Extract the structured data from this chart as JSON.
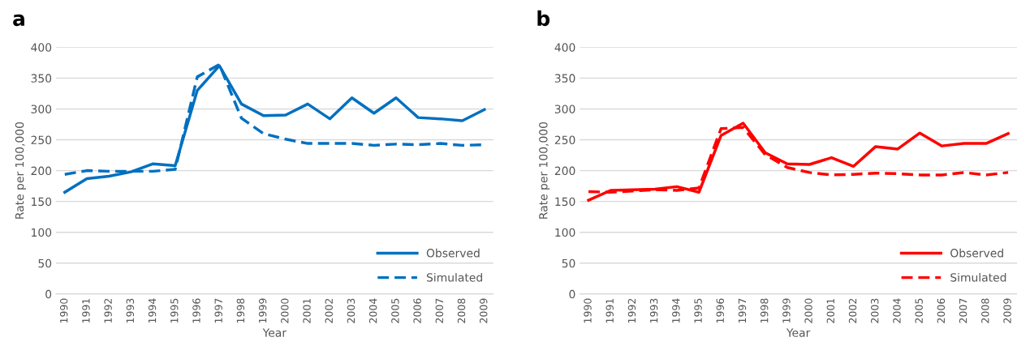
{
  "chart_data": [
    {
      "type": "line",
      "title": "a",
      "xlabel": "Year",
      "ylabel": "Rate per 100,000",
      "categories": [
        "1990",
        "1991",
        "1992",
        "1993",
        "1994",
        "1995",
        "1996",
        "1997",
        "1998",
        "1999",
        "2000",
        "2001",
        "2002",
        "2003",
        "2004",
        "2005",
        "2006",
        "2007",
        "2008",
        "2009"
      ],
      "ylim": [
        0,
        400
      ],
      "yticks": [
        0,
        50,
        100,
        150,
        200,
        250,
        300,
        350,
        400
      ],
      "grid": "y",
      "legend": "bottom right",
      "marker": "none",
      "series": [
        {
          "name": "Observed",
          "color": "#0070c0",
          "line_style": "solid",
          "values": [
            165,
            187,
            191,
            198,
            211,
            208,
            330,
            370,
            308,
            289,
            290,
            308,
            284,
            318,
            293,
            318,
            286,
            284,
            281,
            299
          ]
        },
        {
          "name": "Simulated",
          "color": "#0070c0",
          "line_style": "dashed",
          "values": [
            194,
            200,
            199,
            199,
            199,
            202,
            352,
            372,
            285,
            260,
            251,
            244,
            244,
            244,
            241,
            243,
            242,
            244,
            241,
            242
          ]
        }
      ]
    },
    {
      "type": "line",
      "title": "b",
      "xlabel": "Year",
      "ylabel": "Rate per 100,000",
      "categories": [
        "1990",
        "1991",
        "1992",
        "1993",
        "1994",
        "1995",
        "1996",
        "1997",
        "1998",
        "1999",
        "2000",
        "2001",
        "2002",
        "2003",
        "2004",
        "2005",
        "2006",
        "2007",
        "2008",
        "2009"
      ],
      "ylim": [
        0,
        400
      ],
      "yticks": [
        0,
        50,
        100,
        150,
        200,
        250,
        300,
        350,
        400
      ],
      "grid": "y",
      "legend": "bottom right",
      "marker": "none",
      "series": [
        {
          "name": "Observed",
          "color": "#ff0000",
          "line_style": "solid",
          "values": [
            152,
            168,
            169,
            170,
            174,
            165,
            257,
            277,
            229,
            211,
            210,
            221,
            207,
            239,
            235,
            261,
            240,
            244,
            244,
            260
          ]
        },
        {
          "name": "Simulated",
          "color": "#ff0000",
          "line_style": "dashed",
          "values": [
            166,
            165,
            167,
            169,
            168,
            172,
            268,
            270,
            226,
            205,
            197,
            193,
            194,
            196,
            195,
            193,
            193,
            197,
            193,
            197
          ]
        }
      ]
    }
  ]
}
